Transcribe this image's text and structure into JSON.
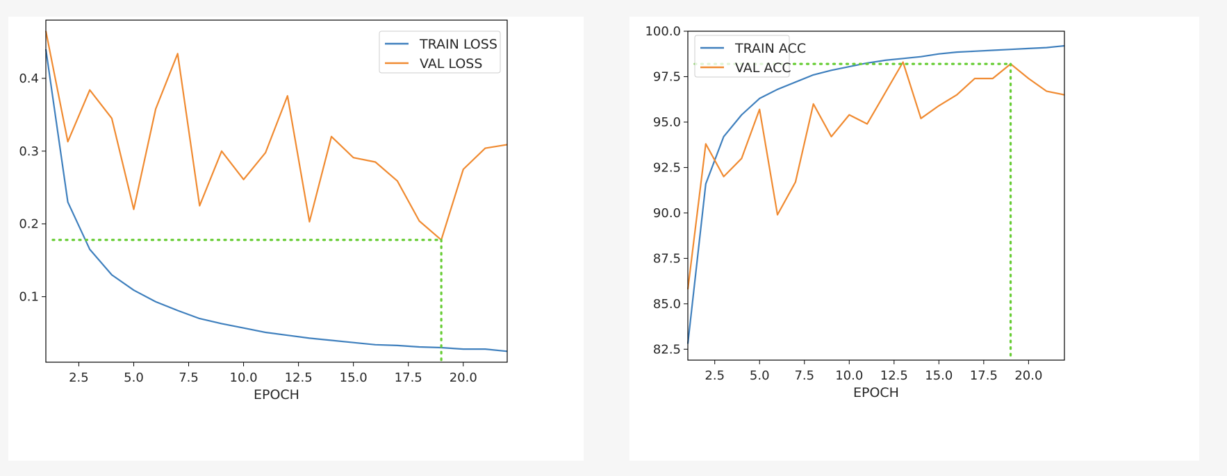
{
  "colors": {
    "train": "#3e7fbd",
    "val": "#f08a30",
    "marker": "#66cc33"
  },
  "chart_data": [
    {
      "type": "line",
      "title": "",
      "xlabel": "EPOCH",
      "ylabel": "",
      "xlim": [
        1,
        22
      ],
      "ylim": [
        0.01,
        0.48
      ],
      "x_ticks": [
        2.5,
        5.0,
        7.5,
        10.0,
        12.5,
        15.0,
        17.5,
        20.0
      ],
      "y_ticks": [
        0.1,
        0.2,
        0.3,
        0.4
      ],
      "x_tick_labels": [
        "2.5",
        "5.0",
        "7.5",
        "10.0",
        "12.5",
        "15.0",
        "17.5",
        "20.0"
      ],
      "y_tick_labels": [
        "0.1",
        "0.2",
        "0.3",
        "0.4"
      ],
      "legend_position": "upper right",
      "x": [
        1,
        2,
        3,
        4,
        5,
        6,
        7,
        8,
        9,
        10,
        11,
        12,
        13,
        14,
        15,
        16,
        17,
        18,
        19,
        20,
        21,
        22
      ],
      "series": [
        {
          "name": "TRAIN LOSS",
          "color_key": "train",
          "values": [
            0.44,
            0.23,
            0.165,
            0.13,
            0.109,
            0.093,
            0.081,
            0.07,
            0.063,
            0.057,
            0.051,
            0.047,
            0.043,
            0.04,
            0.037,
            0.034,
            0.033,
            0.031,
            0.03,
            0.028,
            0.028,
            0.025
          ]
        },
        {
          "name": "VAL LOSS",
          "color_key": "val",
          "values": [
            0.465,
            0.313,
            0.384,
            0.345,
            0.22,
            0.358,
            0.434,
            0.225,
            0.3,
            0.261,
            0.298,
            0.376,
            0.203,
            0.32,
            0.291,
            0.285,
            0.259,
            0.204,
            0.178,
            0.275,
            0.304,
            0.309
          ]
        }
      ],
      "reference": {
        "x": 19,
        "y": 0.178
      }
    },
    {
      "type": "line",
      "title": "",
      "xlabel": "EPOCH",
      "ylabel": "",
      "xlim": [
        1,
        22
      ],
      "ylim": [
        81.9,
        100.0
      ],
      "x_ticks": [
        2.5,
        5.0,
        7.5,
        10.0,
        12.5,
        15.0,
        17.5,
        20.0
      ],
      "y_ticks": [
        82.5,
        85.0,
        87.5,
        90.0,
        92.5,
        95.0,
        97.5,
        100.0
      ],
      "x_tick_labels": [
        "2.5",
        "5.0",
        "7.5",
        "10.0",
        "12.5",
        "15.0",
        "17.5",
        "20.0"
      ],
      "y_tick_labels": [
        "82.5",
        "85.0",
        "87.5",
        "90.0",
        "92.5",
        "95.0",
        "97.5",
        "100.0"
      ],
      "legend_position": "upper left",
      "x": [
        1,
        2,
        3,
        4,
        5,
        6,
        7,
        8,
        9,
        10,
        11,
        12,
        13,
        14,
        15,
        16,
        17,
        18,
        19,
        20,
        21,
        22
      ],
      "series": [
        {
          "name": "TRAIN ACC",
          "color_key": "train",
          "values": [
            82.8,
            91.6,
            94.2,
            95.4,
            96.3,
            96.8,
            97.2,
            97.6,
            97.85,
            98.05,
            98.25,
            98.4,
            98.5,
            98.6,
            98.75,
            98.85,
            98.9,
            98.95,
            99.0,
            99.05,
            99.1,
            99.2
          ]
        },
        {
          "name": "VAL ACC",
          "color_key": "val",
          "values": [
            85.8,
            93.8,
            92.0,
            93.0,
            95.7,
            89.9,
            91.7,
            96.0,
            94.2,
            95.4,
            94.9,
            96.6,
            98.3,
            95.2,
            95.9,
            96.5,
            97.4,
            97.4,
            98.2,
            97.4,
            96.7,
            96.5
          ]
        }
      ],
      "reference": {
        "x": 19,
        "y": 98.2
      }
    }
  ]
}
